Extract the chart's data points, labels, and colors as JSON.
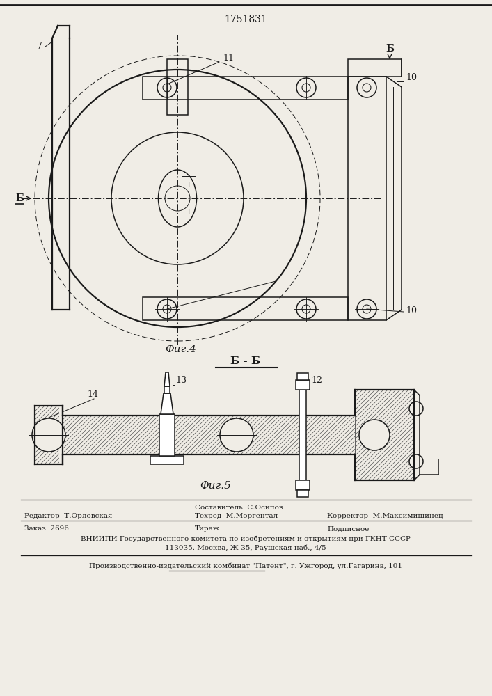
{
  "patent_number": "1751831",
  "bg_color": "#f0ede6",
  "line_color": "#1a1a1a",
  "fig4_caption": "Фиг.4",
  "fig5_caption": "Фиг.5",
  "section_label": "Б - Б",
  "footer": {
    "editor_label": "Редактор",
    "editor_name": "Т.Орловская",
    "composer_label": "Составитель",
    "composer_name": "С.Осипов",
    "techred_label": "Техред",
    "techred_name": "М.Моргентал",
    "corrector_label": "Корректор",
    "corrector_name": "М.Максимишинец",
    "order_label": "Заказ",
    "order_num": "2696",
    "tirazh_label": "Тираж",
    "podpisnoe_label": "Подписное",
    "vniiipi_line": "ВНИИПИ Государственного комитета по изобретениям и открытиям при ГКНТ СССР",
    "address_line": "113035. Москва, Ж-35, Раушская наб., 4/5",
    "factory_line": "Производственно-издательский комбинат \"Патент\", г. Ужгород, ул.Гагарина, 101"
  }
}
